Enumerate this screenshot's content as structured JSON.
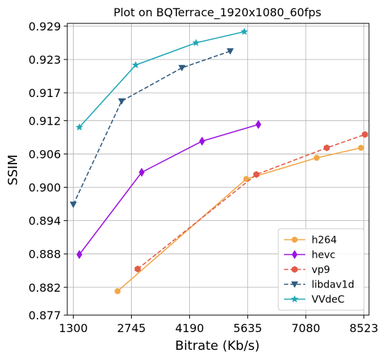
{
  "chart_data": {
    "type": "line",
    "title": "Plot on BQTerrace_1920x1080_60fps",
    "xlabel": "Bitrate (Kb/s)",
    "ylabel": "SSIM",
    "xlim": [
      1150,
      8650
    ],
    "ylim": [
      0.877,
      0.9295
    ],
    "xticks": [
      1300,
      2745,
      4190,
      5635,
      7080,
      8523
    ],
    "xtick_labels": [
      "1300",
      "2745",
      "4190",
      "5635",
      "7080",
      "8523"
    ],
    "yticks": [
      0.877,
      0.882,
      0.888,
      0.894,
      0.9,
      0.906,
      0.912,
      0.917,
      0.923,
      0.929
    ],
    "ytick_labels": [
      "0.877",
      "0.882",
      "0.888",
      "0.894",
      "0.900",
      "0.906",
      "0.912",
      "0.917",
      "0.923",
      "0.929"
    ],
    "grid": true,
    "legend_position": "bottom-right",
    "series": [
      {
        "name": "h264",
        "color": "#f0a848",
        "marker": "circle",
        "dashed": false,
        "points": [
          [
            2400,
            0.8813
          ],
          [
            5600,
            0.9015
          ],
          [
            7350,
            0.9053
          ],
          [
            8450,
            0.9071
          ]
        ]
      },
      {
        "name": "hevc",
        "color": "#9b12e0",
        "marker": "diamond",
        "dashed": false,
        "points": [
          [
            1450,
            0.8879
          ],
          [
            3000,
            0.9027
          ],
          [
            4500,
            0.9083
          ],
          [
            5900,
            0.9113
          ]
        ]
      },
      {
        "name": "vp9",
        "color": "#e25a48",
        "marker": "hexagon",
        "dashed": true,
        "points": [
          [
            2900,
            0.8853
          ],
          [
            5850,
            0.9023
          ],
          [
            7600,
            0.9071
          ],
          [
            8550,
            0.9095
          ]
        ]
      },
      {
        "name": "libdav1d",
        "color": "#2e5a80",
        "marker": "triangle-down",
        "dashed": true,
        "points": [
          [
            1300,
            0.8969
          ],
          [
            2500,
            0.9155
          ],
          [
            4000,
            0.9215
          ],
          [
            5200,
            0.9245
          ]
        ]
      },
      {
        "name": "VVdeC",
        "color": "#1fa7b6",
        "marker": "star",
        "dashed": false,
        "points": [
          [
            1450,
            0.9108
          ],
          [
            2850,
            0.922
          ],
          [
            4350,
            0.926
          ],
          [
            5550,
            0.928
          ]
        ]
      }
    ]
  }
}
